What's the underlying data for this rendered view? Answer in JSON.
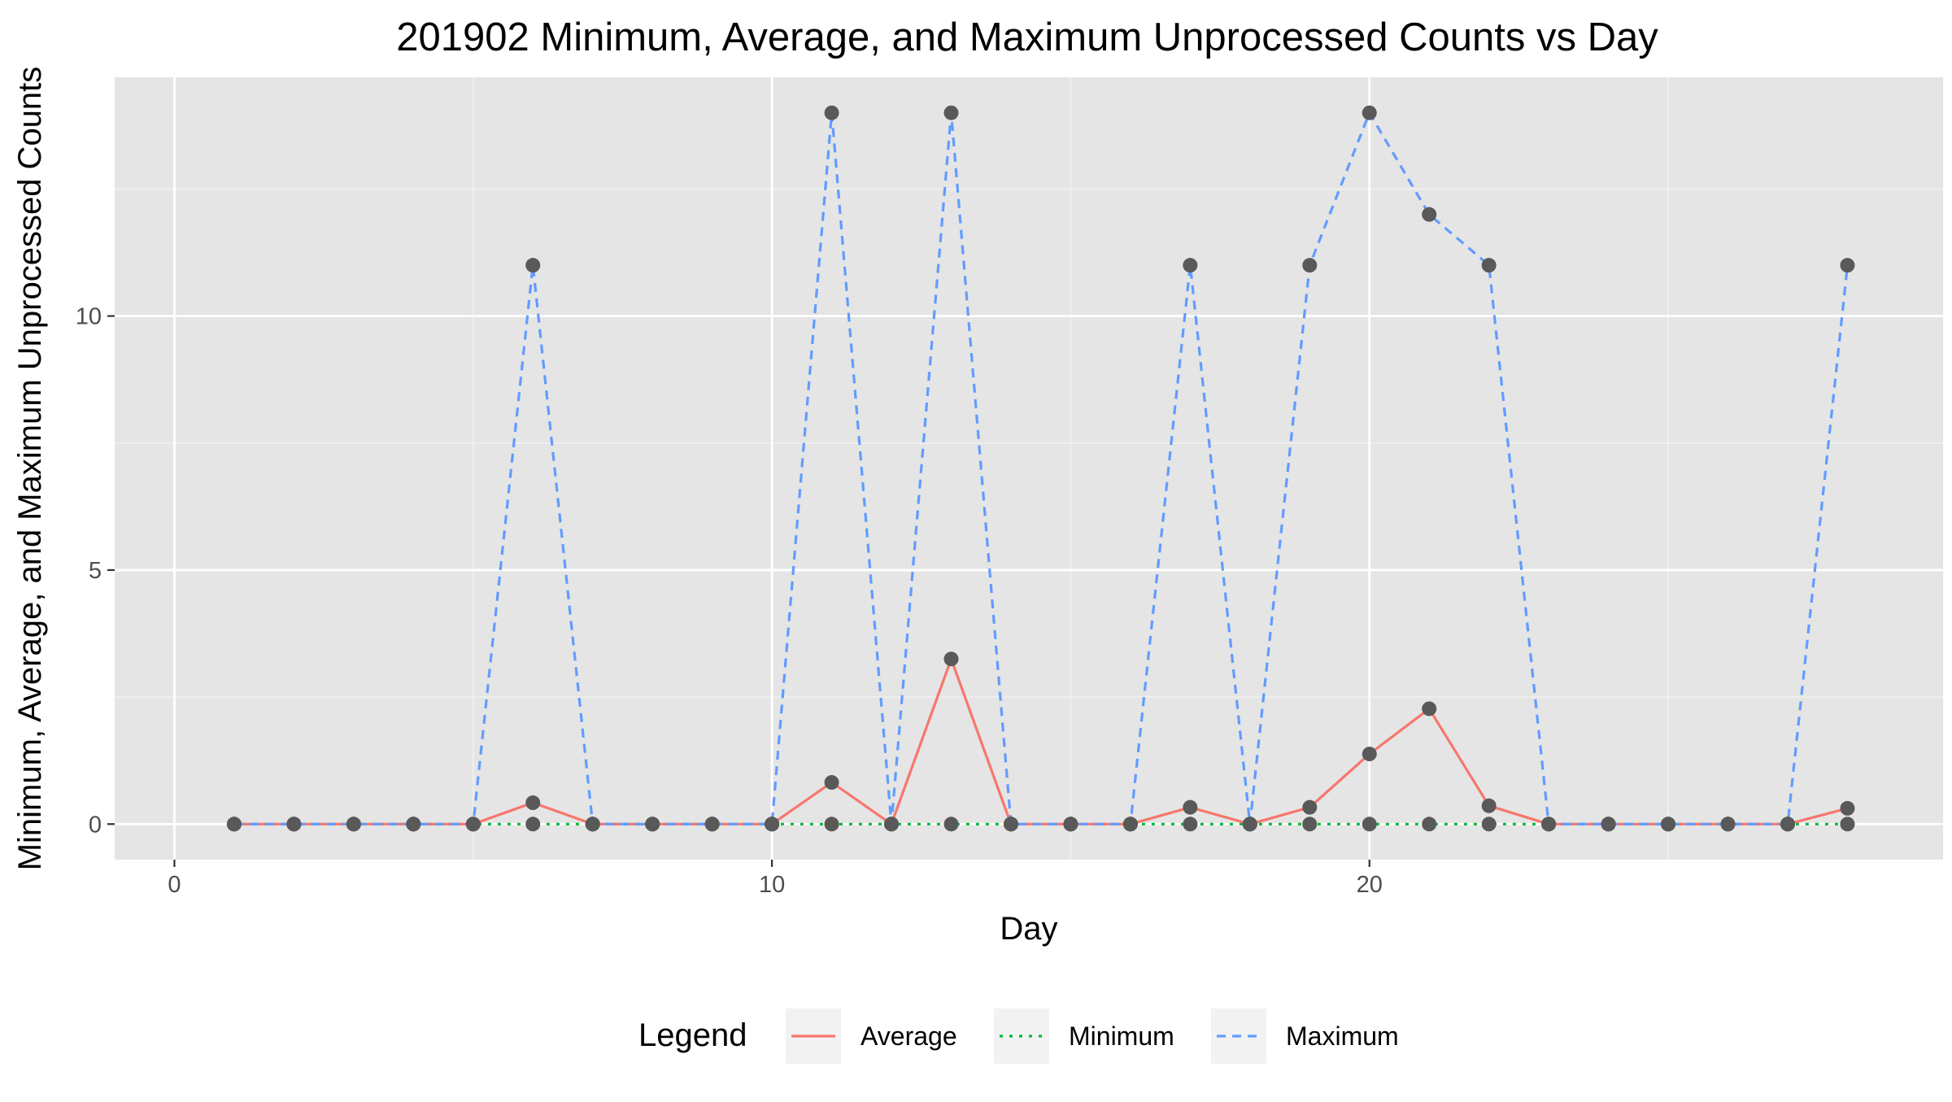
{
  "chart_data": {
    "type": "line",
    "title": "201902 Minimum, Average, and Maximum Unprocessed Counts vs Day",
    "xlabel": "Day",
    "ylabel": "Minimum, Average, and Maximum Unprocessed Counts",
    "xlim": [
      -1,
      29.6
    ],
    "ylim": [
      -0.7,
      14.7
    ],
    "x_ticks": [
      0,
      10,
      20
    ],
    "x_minor_ticks": [
      5,
      15,
      25
    ],
    "y_ticks": [
      0,
      5,
      10
    ],
    "y_minor_ticks": [
      2.5,
      7.5,
      12.5
    ],
    "grid": true,
    "background": "#e5e5e5",
    "x": [
      1,
      2,
      3,
      4,
      5,
      6,
      7,
      8,
      9,
      10,
      11,
      12,
      13,
      14,
      15,
      16,
      17,
      18,
      19,
      20,
      21,
      22,
      23,
      24,
      25,
      26,
      27,
      28
    ],
    "series": [
      {
        "name": "Average",
        "color": "#f8766d",
        "dash": "solid",
        "values": [
          0,
          0,
          0,
          0,
          0,
          0.42,
          0,
          0,
          0,
          0,
          0.82,
          0,
          3.25,
          0,
          0,
          0,
          0.33,
          0,
          0.33,
          1.38,
          2.27,
          0.36,
          0,
          0,
          0,
          0,
          0,
          0.31
        ]
      },
      {
        "name": "Minimum",
        "color": "#00ba38",
        "dash": "dotted",
        "values": [
          0,
          0,
          0,
          0,
          0,
          0,
          0,
          0,
          0,
          0,
          0,
          0,
          0,
          0,
          0,
          0,
          0,
          0,
          0,
          0,
          0,
          0,
          0,
          0,
          0,
          0,
          0,
          0
        ]
      },
      {
        "name": "Maximum",
        "color": "#619cff",
        "dash": "dashed",
        "values": [
          0,
          0,
          0,
          0,
          0,
          11,
          0,
          0,
          0,
          0,
          14,
          0,
          14,
          0,
          0,
          0,
          11,
          0,
          11,
          14,
          12,
          11,
          0,
          0,
          0,
          0,
          0,
          11
        ]
      }
    ],
    "point_color": "#595959",
    "legend": {
      "title": "Legend",
      "position": "bottom",
      "entries": [
        "Average",
        "Minimum",
        "Maximum"
      ]
    }
  }
}
